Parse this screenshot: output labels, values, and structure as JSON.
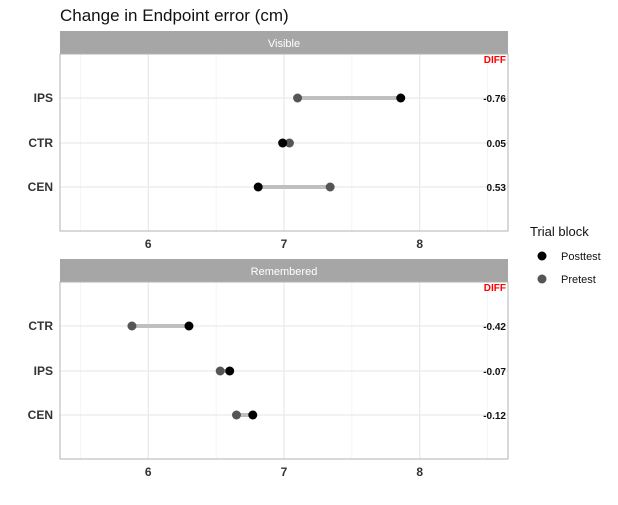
{
  "chart_data": {
    "type": "dumbbell",
    "title": "Change in Endpoint error (cm)",
    "xlabel": "",
    "ylabel": "",
    "xlim": [
      5.35,
      8.65
    ],
    "xticks": [
      6,
      7,
      8
    ],
    "grid": true,
    "diff_header": "DIFF",
    "colors": {
      "Posttest": "#000000",
      "Pretest": "#555555",
      "segment": "#bfbfbf",
      "diff_header": "#ff0000",
      "strip": "#a6a6a6",
      "grid_major": "#e6e6e6",
      "grid_minor": "#f0f0f0",
      "panel_border": "#b3b3b3"
    },
    "legend": {
      "title": "Trial block",
      "position": "right",
      "entries": [
        "Posttest",
        "Pretest"
      ]
    },
    "panels": [
      {
        "strip": "Visible",
        "categories": [
          "IPS",
          "CTR",
          "CEN"
        ],
        "series": [
          {
            "name": "Posttest",
            "values": [
              7.86,
              6.99,
              6.81
            ]
          },
          {
            "name": "Pretest",
            "values": [
              7.1,
              7.04,
              7.34
            ]
          }
        ],
        "diff": [
          "-0.76",
          "0.05",
          "0.53"
        ]
      },
      {
        "strip": "Remembered",
        "categories": [
          "CTR",
          "IPS",
          "CEN"
        ],
        "series": [
          {
            "name": "Posttest",
            "values": [
              6.3,
              6.6,
              6.77
            ]
          },
          {
            "name": "Pretest",
            "values": [
              5.88,
              6.53,
              6.65
            ]
          }
        ],
        "diff": [
          "-0.42",
          "-0.07",
          "-0.12"
        ]
      }
    ]
  }
}
